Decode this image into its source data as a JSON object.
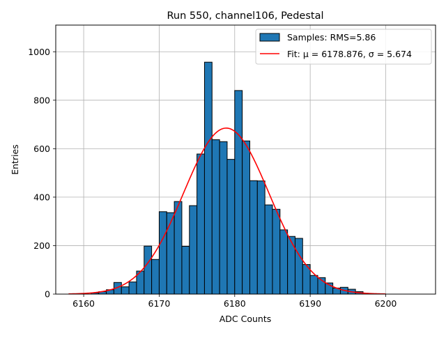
{
  "chart_data": {
    "type": "bar",
    "title": "Run 550, channel106, Pedestal",
    "xlabel": "ADC Counts",
    "ylabel": "Entries",
    "xlim": [
      6156.3,
      6206.6
    ],
    "ylim": [
      0,
      1110
    ],
    "xticks": [
      6160,
      6170,
      6180,
      6190,
      6200
    ],
    "yticks": [
      0,
      200,
      400,
      600,
      800,
      1000
    ],
    "grid": true,
    "legend_position": "top-right",
    "legend": {
      "samples_label": "Samples: RMS=5.86",
      "fit_label": "Fit: μ = 6178.876, σ = 5.674"
    },
    "bin_width": 1,
    "histogram": {
      "name": "Samples: RMS=5.86",
      "color": "#1f77b4",
      "edge_color": "#000000",
      "bin_start": [
        6161,
        6162,
        6163,
        6164,
        6165,
        6166,
        6167,
        6168,
        6169,
        6170,
        6171,
        6172,
        6173,
        6174,
        6175,
        6176,
        6177,
        6178,
        6179,
        6180,
        6181,
        6182,
        6183,
        6184,
        6185,
        6186,
        6187,
        6188,
        6189,
        6190,
        6191,
        6192,
        6193,
        6194,
        6195,
        6196
      ],
      "counts": [
        5,
        10,
        18,
        48,
        30,
        50,
        95,
        198,
        143,
        340,
        336,
        382,
        197,
        365,
        578,
        957,
        637,
        629,
        556,
        840,
        632,
        468,
        467,
        368,
        350,
        265,
        238,
        230,
        122,
        77,
        68,
        46,
        25,
        28,
        20,
        10
      ]
    },
    "fit": {
      "name": "Fit: μ = 6178.876, σ = 5.674",
      "color": "#ff0000",
      "mu": 6178.876,
      "sigma": 5.674,
      "amplitude": 685,
      "x_range": [
        6158,
        6200
      ]
    }
  }
}
